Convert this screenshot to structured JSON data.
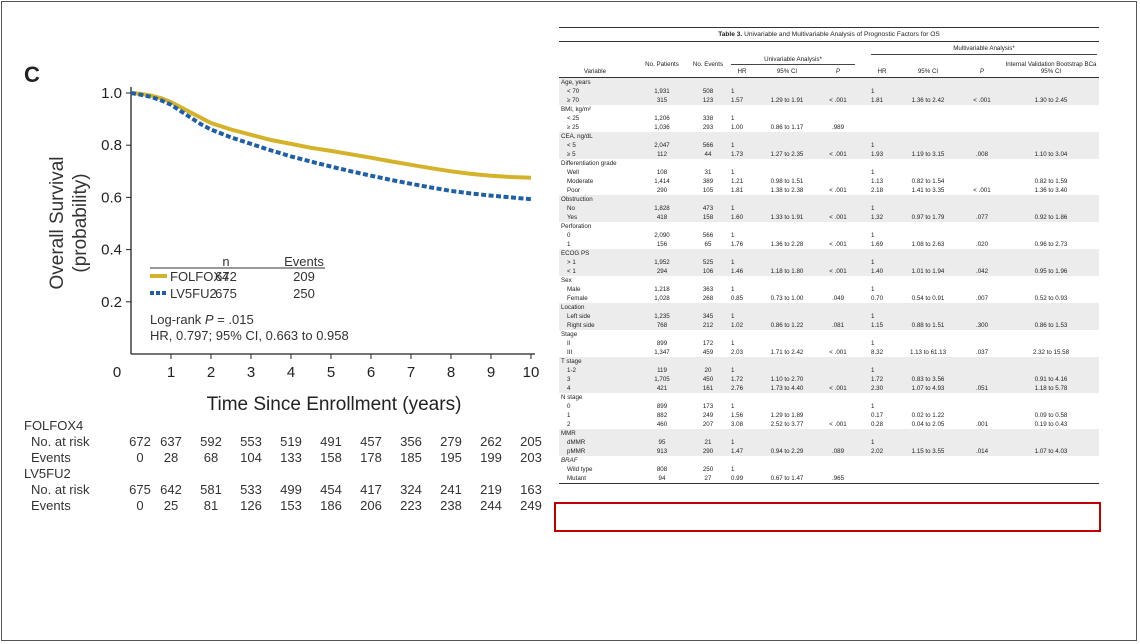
{
  "panel_label": "C",
  "chart_data": {
    "type": "line",
    "title": "",
    "xlabel": "Time Since Enrollment (years)",
    "ylabel": "Overall Survival (probability)",
    "xlim": [
      0,
      10
    ],
    "ylim": [
      0,
      1.0
    ],
    "xticks": [
      "0",
      "1",
      "2",
      "3",
      "4",
      "5",
      "6",
      "7",
      "8",
      "9",
      "10"
    ],
    "yticks": [
      "0.2",
      "0.4",
      "0.6",
      "0.8",
      "1.0"
    ],
    "legend": {
      "n_header": "n",
      "events_header": "Events"
    },
    "series": [
      {
        "name": "FOLFOX4",
        "n": "672",
        "events": "209",
        "color": "#d4b32a",
        "x": [
          0,
          0.25,
          0.5,
          0.75,
          1,
          1.25,
          1.5,
          1.75,
          2,
          2.5,
          3,
          3.5,
          4,
          4.5,
          5,
          5.5,
          6,
          6.5,
          7,
          7.5,
          8,
          8.5,
          9,
          9.5,
          10
        ],
        "y": [
          1.0,
          0.997,
          0.99,
          0.98,
          0.965,
          0.945,
          0.925,
          0.905,
          0.885,
          0.86,
          0.84,
          0.82,
          0.805,
          0.79,
          0.778,
          0.765,
          0.752,
          0.738,
          0.725,
          0.712,
          0.7,
          0.69,
          0.683,
          0.678,
          0.675
        ]
      },
      {
        "name": "LV5FU2",
        "n": "675",
        "events": "250",
        "color": "#1f5fa8",
        "x": [
          0,
          0.25,
          0.5,
          0.75,
          1,
          1.25,
          1.5,
          1.75,
          2,
          2.5,
          3,
          3.5,
          4,
          4.5,
          5,
          5.5,
          6,
          6.5,
          7,
          7.5,
          8,
          8.5,
          9,
          9.5,
          10
        ],
        "y": [
          1.0,
          0.993,
          0.985,
          0.972,
          0.955,
          0.93,
          0.905,
          0.88,
          0.86,
          0.83,
          0.805,
          0.78,
          0.757,
          0.737,
          0.718,
          0.7,
          0.683,
          0.667,
          0.652,
          0.638,
          0.625,
          0.615,
          0.607,
          0.6,
          0.593
        ]
      }
    ],
    "annotation_logrank_prefix": "Log-rank ",
    "annotation_logrank_p": "P",
    "annotation_logrank_value": " = .015",
    "annotation_hr": "HR, 0.797; 95% CI, 0.663 to 0.958"
  },
  "risk_table": {
    "rows": [
      {
        "label": "FOLFOX4",
        "indent": false,
        "values": []
      },
      {
        "label": "No. at risk",
        "indent": true,
        "values": [
          "672",
          "637",
          "592",
          "553",
          "519",
          "491",
          "457",
          "356",
          "279",
          "262",
          "205"
        ]
      },
      {
        "label": "Events",
        "indent": true,
        "values": [
          "0",
          "28",
          "68",
          "104",
          "133",
          "158",
          "178",
          "185",
          "195",
          "199",
          "203"
        ]
      },
      {
        "label": "LV5FU2",
        "indent": false,
        "values": []
      },
      {
        "label": "No. at risk",
        "indent": true,
        "values": [
          "675",
          "642",
          "581",
          "533",
          "499",
          "454",
          "417",
          "324",
          "241",
          "219",
          "163"
        ]
      },
      {
        "label": "Events",
        "indent": true,
        "values": [
          "0",
          "25",
          "81",
          "126",
          "153",
          "186",
          "206",
          "223",
          "238",
          "244",
          "249"
        ]
      }
    ]
  },
  "table": {
    "title_bold": "Table 3.",
    "title_rest": " Univariable and Multivariable Analysis of Prognostic Factors for OS",
    "multivariable_header": "Multivariable Analysis*",
    "univariable_header": "Univariable Analysis*",
    "columns": [
      "Variable",
      "No. Patients",
      "No. Events",
      "HR",
      "95% CI",
      "P",
      "HR",
      "95% CI",
      "P",
      "Internal Validation Bootstrap BCa 95% CI"
    ],
    "groups": [
      {
        "name": "Age, years",
        "rows": [
          [
            "< 70",
            "1,931",
            "508",
            "1",
            "",
            "",
            "1",
            "",
            "",
            ""
          ],
          [
            "≥ 70",
            "315",
            "123",
            "1.57",
            "1.29 to 1.91",
            "< .001",
            "1.81",
            "1.36 to 2.42",
            "< .001",
            "1.30 to 2.45"
          ]
        ]
      },
      {
        "name": "BMI, kg/m²",
        "rows": [
          [
            "< 25",
            "1,206",
            "338",
            "1",
            "",
            "",
            "",
            "",
            "",
            ""
          ],
          [
            "≥ 25",
            "1,036",
            "293",
            "1.00",
            "0.86 to 1.17",
            ".989",
            "",
            "",
            "",
            ""
          ]
        ]
      },
      {
        "name": "CEA, ng/dL",
        "rows": [
          [
            "< 5",
            "2,047",
            "566",
            "1",
            "",
            "",
            "1",
            "",
            "",
            ""
          ],
          [
            "≥ 5",
            "112",
            "44",
            "1.73",
            "1.27 to 2.35",
            "< .001",
            "1.93",
            "1.19 to 3.15",
            ".008",
            "1.10 to 3.04"
          ]
        ]
      },
      {
        "name": "Differentiation grade",
        "rows": [
          [
            "Well",
            "108",
            "31",
            "1",
            "",
            "",
            "1",
            "",
            "",
            ""
          ],
          [
            "Moderate",
            "1,414",
            "389",
            "1.21",
            "0.98 to 1.51",
            "",
            "1.13",
            "0.82 to 1.54",
            "",
            "0.82 to 1.59"
          ],
          [
            "Poor",
            "290",
            "105",
            "1.81",
            "1.38 to 2.38",
            "< .001",
            "2.18",
            "1.41 to 3.35",
            "< .001",
            "1.36 to 3.40"
          ]
        ]
      },
      {
        "name": "Obstruction",
        "rows": [
          [
            "No",
            "1,828",
            "473",
            "1",
            "",
            "",
            "1",
            "",
            "",
            ""
          ],
          [
            "Yes",
            "418",
            "158",
            "1.60",
            "1.33 to 1.91",
            "< .001",
            "1.32",
            "0.97 to 1.79",
            ".077",
            "0.92 to 1.86"
          ]
        ]
      },
      {
        "name": "Perforation",
        "rows": [
          [
            "0",
            "2,090",
            "566",
            "1",
            "",
            "",
            "1",
            "",
            "",
            ""
          ],
          [
            "1",
            "156",
            "65",
            "1.76",
            "1.36 to 2.28",
            "< .001",
            "1.69",
            "1.08 to 2.63",
            ".020",
            "0.96 to 2.73"
          ]
        ]
      },
      {
        "name": "ECOG PS",
        "rows": [
          [
            "> 1",
            "1,952",
            "525",
            "1",
            "",
            "",
            "1",
            "",
            "",
            ""
          ],
          [
            "< 1",
            "294",
            "106",
            "1.46",
            "1.18 to 1.80",
            "< .001",
            "1.40",
            "1.01 to 1.94",
            ".042",
            "0.95 to 1.96"
          ]
        ]
      },
      {
        "name": "Sex",
        "rows": [
          [
            "Male",
            "1,218",
            "363",
            "1",
            "",
            "",
            "1",
            "",
            "",
            ""
          ],
          [
            "Female",
            "1,028",
            "268",
            "0.85",
            "0.73 to 1.00",
            ".049",
            "0.70",
            "0.54 to 0.91",
            ".007",
            "0.52 to 0.93"
          ]
        ]
      },
      {
        "name": "Location",
        "rows": [
          [
            "Left side",
            "1,235",
            "345",
            "1",
            "",
            "",
            "1",
            "",
            "",
            ""
          ],
          [
            "Right side",
            "768",
            "212",
            "1.02",
            "0.86 to 1.22",
            ".081",
            "1.15",
            "0.88 to 1.51",
            ".300",
            "0.86 to 1.53"
          ]
        ]
      },
      {
        "name": "Stage",
        "rows": [
          [
            "II",
            "899",
            "172",
            "1",
            "",
            "",
            "1",
            "",
            "",
            ""
          ],
          [
            "III",
            "1,347",
            "459",
            "2.03",
            "1.71 to 2.42",
            "< .001",
            "8.32",
            "1.13 to 61.13",
            ".037",
            "2.32 to 15.58"
          ]
        ]
      },
      {
        "name": "T stage",
        "rows": [
          [
            "1-2",
            "119",
            "20",
            "1",
            "",
            "",
            "1",
            "",
            "",
            ""
          ],
          [
            "3",
            "1,705",
            "450",
            "1.72",
            "1.10 to 2.70",
            "",
            "1.72",
            "0.83 to 3.56",
            "",
            "0.91 to 4.16"
          ],
          [
            "4",
            "421",
            "161",
            "2.76",
            "1.73 to 4.40",
            "< .001",
            "2.30",
            "1.07 to 4.93",
            ".051",
            "1.18 to 5.78"
          ]
        ]
      },
      {
        "name": "N stage",
        "rows": [
          [
            "0",
            "899",
            "173",
            "1",
            "",
            "",
            "1",
            "",
            "",
            ""
          ],
          [
            "1",
            "882",
            "249",
            "1.56",
            "1.29 to 1.89",
            "",
            "0.17",
            "0.02 to 1.22",
            "",
            "0.09 to 0.58"
          ],
          [
            "2",
            "460",
            "207",
            "3.08",
            "2.52 to 3.77",
            "< .001",
            "0.28",
            "0.04 to 2.05",
            ".001",
            "0.19 to 0.43"
          ]
        ]
      },
      {
        "name": "MMR",
        "rows": [
          [
            "dMMR",
            "95",
            "21",
            "1",
            "",
            "",
            "1",
            "",
            "",
            ""
          ],
          [
            "pMMR",
            "913",
            "290",
            "1.47",
            "0.94 to 2.29",
            ".089",
            "2.02",
            "1.15 to 3.55",
            ".014",
            "1.07 to 4.03"
          ]
        ]
      },
      {
        "name": "BRAF",
        "italic": true,
        "rows": [
          [
            "Wild type",
            "808",
            "250",
            "1",
            "",
            "",
            "",
            "",
            "",
            ""
          ],
          [
            "Mutant",
            "94",
            "27",
            "0.99",
            "0.67 to 1.47",
            ".965",
            "",
            "",
            "",
            ""
          ]
        ]
      }
    ]
  }
}
